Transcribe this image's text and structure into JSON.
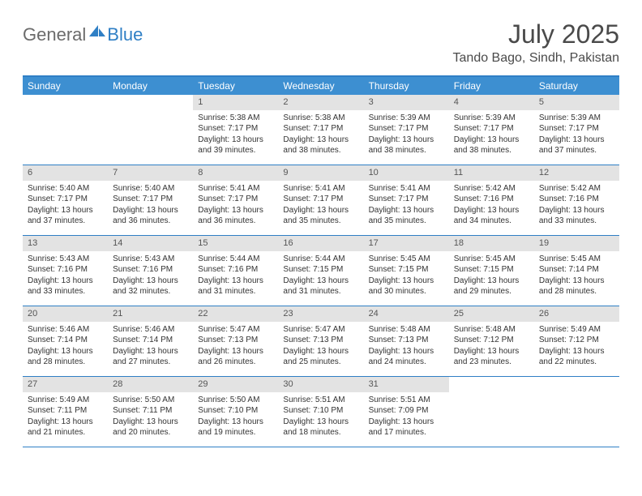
{
  "brand": {
    "part1": "General",
    "part2": "Blue"
  },
  "title": "July 2025",
  "location": "Tando Bago, Sindh, Pakistan",
  "colors": {
    "accent": "#3d8fd1",
    "accent_border": "#2f7fc5",
    "daynum_bg": "#e3e3e3",
    "text": "#333333",
    "title_text": "#4a4a4a",
    "logo_gray": "#6b6b6b",
    "background": "#ffffff"
  },
  "daysOfWeek": [
    "Sunday",
    "Monday",
    "Tuesday",
    "Wednesday",
    "Thursday",
    "Friday",
    "Saturday"
  ],
  "weeks": [
    [
      null,
      null,
      {
        "n": "1",
        "sr": "5:38 AM",
        "ss": "7:17 PM",
        "dl": "13 hours and 39 minutes."
      },
      {
        "n": "2",
        "sr": "5:38 AM",
        "ss": "7:17 PM",
        "dl": "13 hours and 38 minutes."
      },
      {
        "n": "3",
        "sr": "5:39 AM",
        "ss": "7:17 PM",
        "dl": "13 hours and 38 minutes."
      },
      {
        "n": "4",
        "sr": "5:39 AM",
        "ss": "7:17 PM",
        "dl": "13 hours and 38 minutes."
      },
      {
        "n": "5",
        "sr": "5:39 AM",
        "ss": "7:17 PM",
        "dl": "13 hours and 37 minutes."
      }
    ],
    [
      {
        "n": "6",
        "sr": "5:40 AM",
        "ss": "7:17 PM",
        "dl": "13 hours and 37 minutes."
      },
      {
        "n": "7",
        "sr": "5:40 AM",
        "ss": "7:17 PM",
        "dl": "13 hours and 36 minutes."
      },
      {
        "n": "8",
        "sr": "5:41 AM",
        "ss": "7:17 PM",
        "dl": "13 hours and 36 minutes."
      },
      {
        "n": "9",
        "sr": "5:41 AM",
        "ss": "7:17 PM",
        "dl": "13 hours and 35 minutes."
      },
      {
        "n": "10",
        "sr": "5:41 AM",
        "ss": "7:17 PM",
        "dl": "13 hours and 35 minutes."
      },
      {
        "n": "11",
        "sr": "5:42 AM",
        "ss": "7:16 PM",
        "dl": "13 hours and 34 minutes."
      },
      {
        "n": "12",
        "sr": "5:42 AM",
        "ss": "7:16 PM",
        "dl": "13 hours and 33 minutes."
      }
    ],
    [
      {
        "n": "13",
        "sr": "5:43 AM",
        "ss": "7:16 PM",
        "dl": "13 hours and 33 minutes."
      },
      {
        "n": "14",
        "sr": "5:43 AM",
        "ss": "7:16 PM",
        "dl": "13 hours and 32 minutes."
      },
      {
        "n": "15",
        "sr": "5:44 AM",
        "ss": "7:16 PM",
        "dl": "13 hours and 31 minutes."
      },
      {
        "n": "16",
        "sr": "5:44 AM",
        "ss": "7:15 PM",
        "dl": "13 hours and 31 minutes."
      },
      {
        "n": "17",
        "sr": "5:45 AM",
        "ss": "7:15 PM",
        "dl": "13 hours and 30 minutes."
      },
      {
        "n": "18",
        "sr": "5:45 AM",
        "ss": "7:15 PM",
        "dl": "13 hours and 29 minutes."
      },
      {
        "n": "19",
        "sr": "5:45 AM",
        "ss": "7:14 PM",
        "dl": "13 hours and 28 minutes."
      }
    ],
    [
      {
        "n": "20",
        "sr": "5:46 AM",
        "ss": "7:14 PM",
        "dl": "13 hours and 28 minutes."
      },
      {
        "n": "21",
        "sr": "5:46 AM",
        "ss": "7:14 PM",
        "dl": "13 hours and 27 minutes."
      },
      {
        "n": "22",
        "sr": "5:47 AM",
        "ss": "7:13 PM",
        "dl": "13 hours and 26 minutes."
      },
      {
        "n": "23",
        "sr": "5:47 AM",
        "ss": "7:13 PM",
        "dl": "13 hours and 25 minutes."
      },
      {
        "n": "24",
        "sr": "5:48 AM",
        "ss": "7:13 PM",
        "dl": "13 hours and 24 minutes."
      },
      {
        "n": "25",
        "sr": "5:48 AM",
        "ss": "7:12 PM",
        "dl": "13 hours and 23 minutes."
      },
      {
        "n": "26",
        "sr": "5:49 AM",
        "ss": "7:12 PM",
        "dl": "13 hours and 22 minutes."
      }
    ],
    [
      {
        "n": "27",
        "sr": "5:49 AM",
        "ss": "7:11 PM",
        "dl": "13 hours and 21 minutes."
      },
      {
        "n": "28",
        "sr": "5:50 AM",
        "ss": "7:11 PM",
        "dl": "13 hours and 20 minutes."
      },
      {
        "n": "29",
        "sr": "5:50 AM",
        "ss": "7:10 PM",
        "dl": "13 hours and 19 minutes."
      },
      {
        "n": "30",
        "sr": "5:51 AM",
        "ss": "7:10 PM",
        "dl": "13 hours and 18 minutes."
      },
      {
        "n": "31",
        "sr": "5:51 AM",
        "ss": "7:09 PM",
        "dl": "13 hours and 17 minutes."
      },
      null,
      null
    ]
  ],
  "labels": {
    "sunrise": "Sunrise:",
    "sunset": "Sunset:",
    "daylight": "Daylight:"
  }
}
